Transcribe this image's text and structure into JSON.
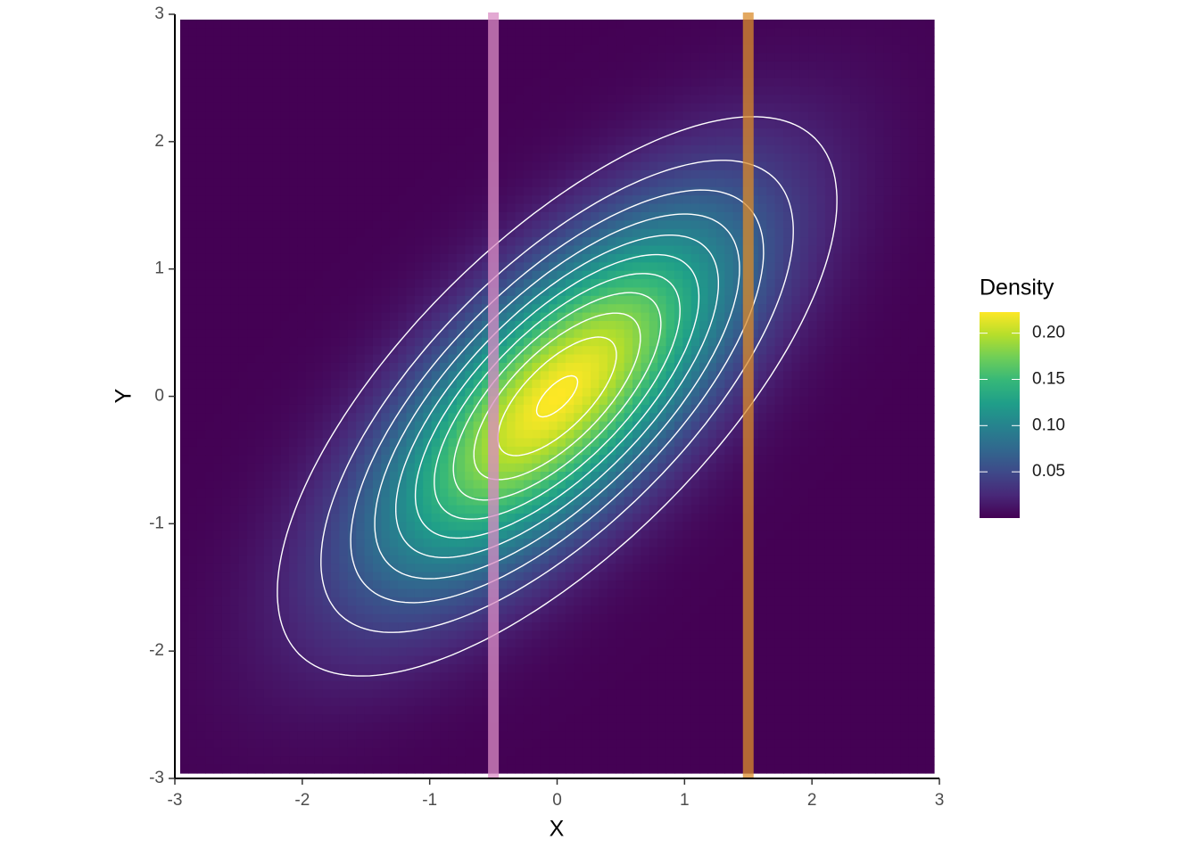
{
  "chart_data": {
    "type": "density2d",
    "xlabel": "X",
    "ylabel": "Y",
    "xlim": [
      -3,
      3
    ],
    "ylim": [
      -3,
      3
    ],
    "xticks": [
      -3,
      -2,
      -1,
      0,
      1,
      2,
      3
    ],
    "yticks": [
      -3,
      -2,
      -1,
      0,
      1,
      2,
      3
    ],
    "distribution": {
      "mean": [
        0,
        0
      ],
      "sd": [
        1,
        1
      ],
      "rho": 0.7
    },
    "contour_levels": [
      0.02,
      0.04,
      0.06,
      0.08,
      0.1,
      0.12,
      0.14,
      0.16,
      0.18,
      0.2,
      0.22
    ],
    "contour_color": "#ffffff",
    "colormap": [
      "#440154",
      "#482878",
      "#3e4989",
      "#31688e",
      "#26828e",
      "#1f9e89",
      "#35b779",
      "#6ece58",
      "#b5de2b",
      "#fde725"
    ],
    "legend_title": "Density",
    "colorlim": [
      0,
      0.2228
    ],
    "colorticks": [
      {
        "value": 0.05,
        "label": "0.05"
      },
      {
        "value": 0.1,
        "label": "0.10"
      },
      {
        "value": 0.15,
        "label": "0.15"
      },
      {
        "value": 0.2,
        "label": "0.20"
      }
    ],
    "vlines": [
      {
        "x": -0.5,
        "color": "#d98cc4"
      },
      {
        "x": 1.5,
        "color": "#d98b2b"
      }
    ]
  }
}
